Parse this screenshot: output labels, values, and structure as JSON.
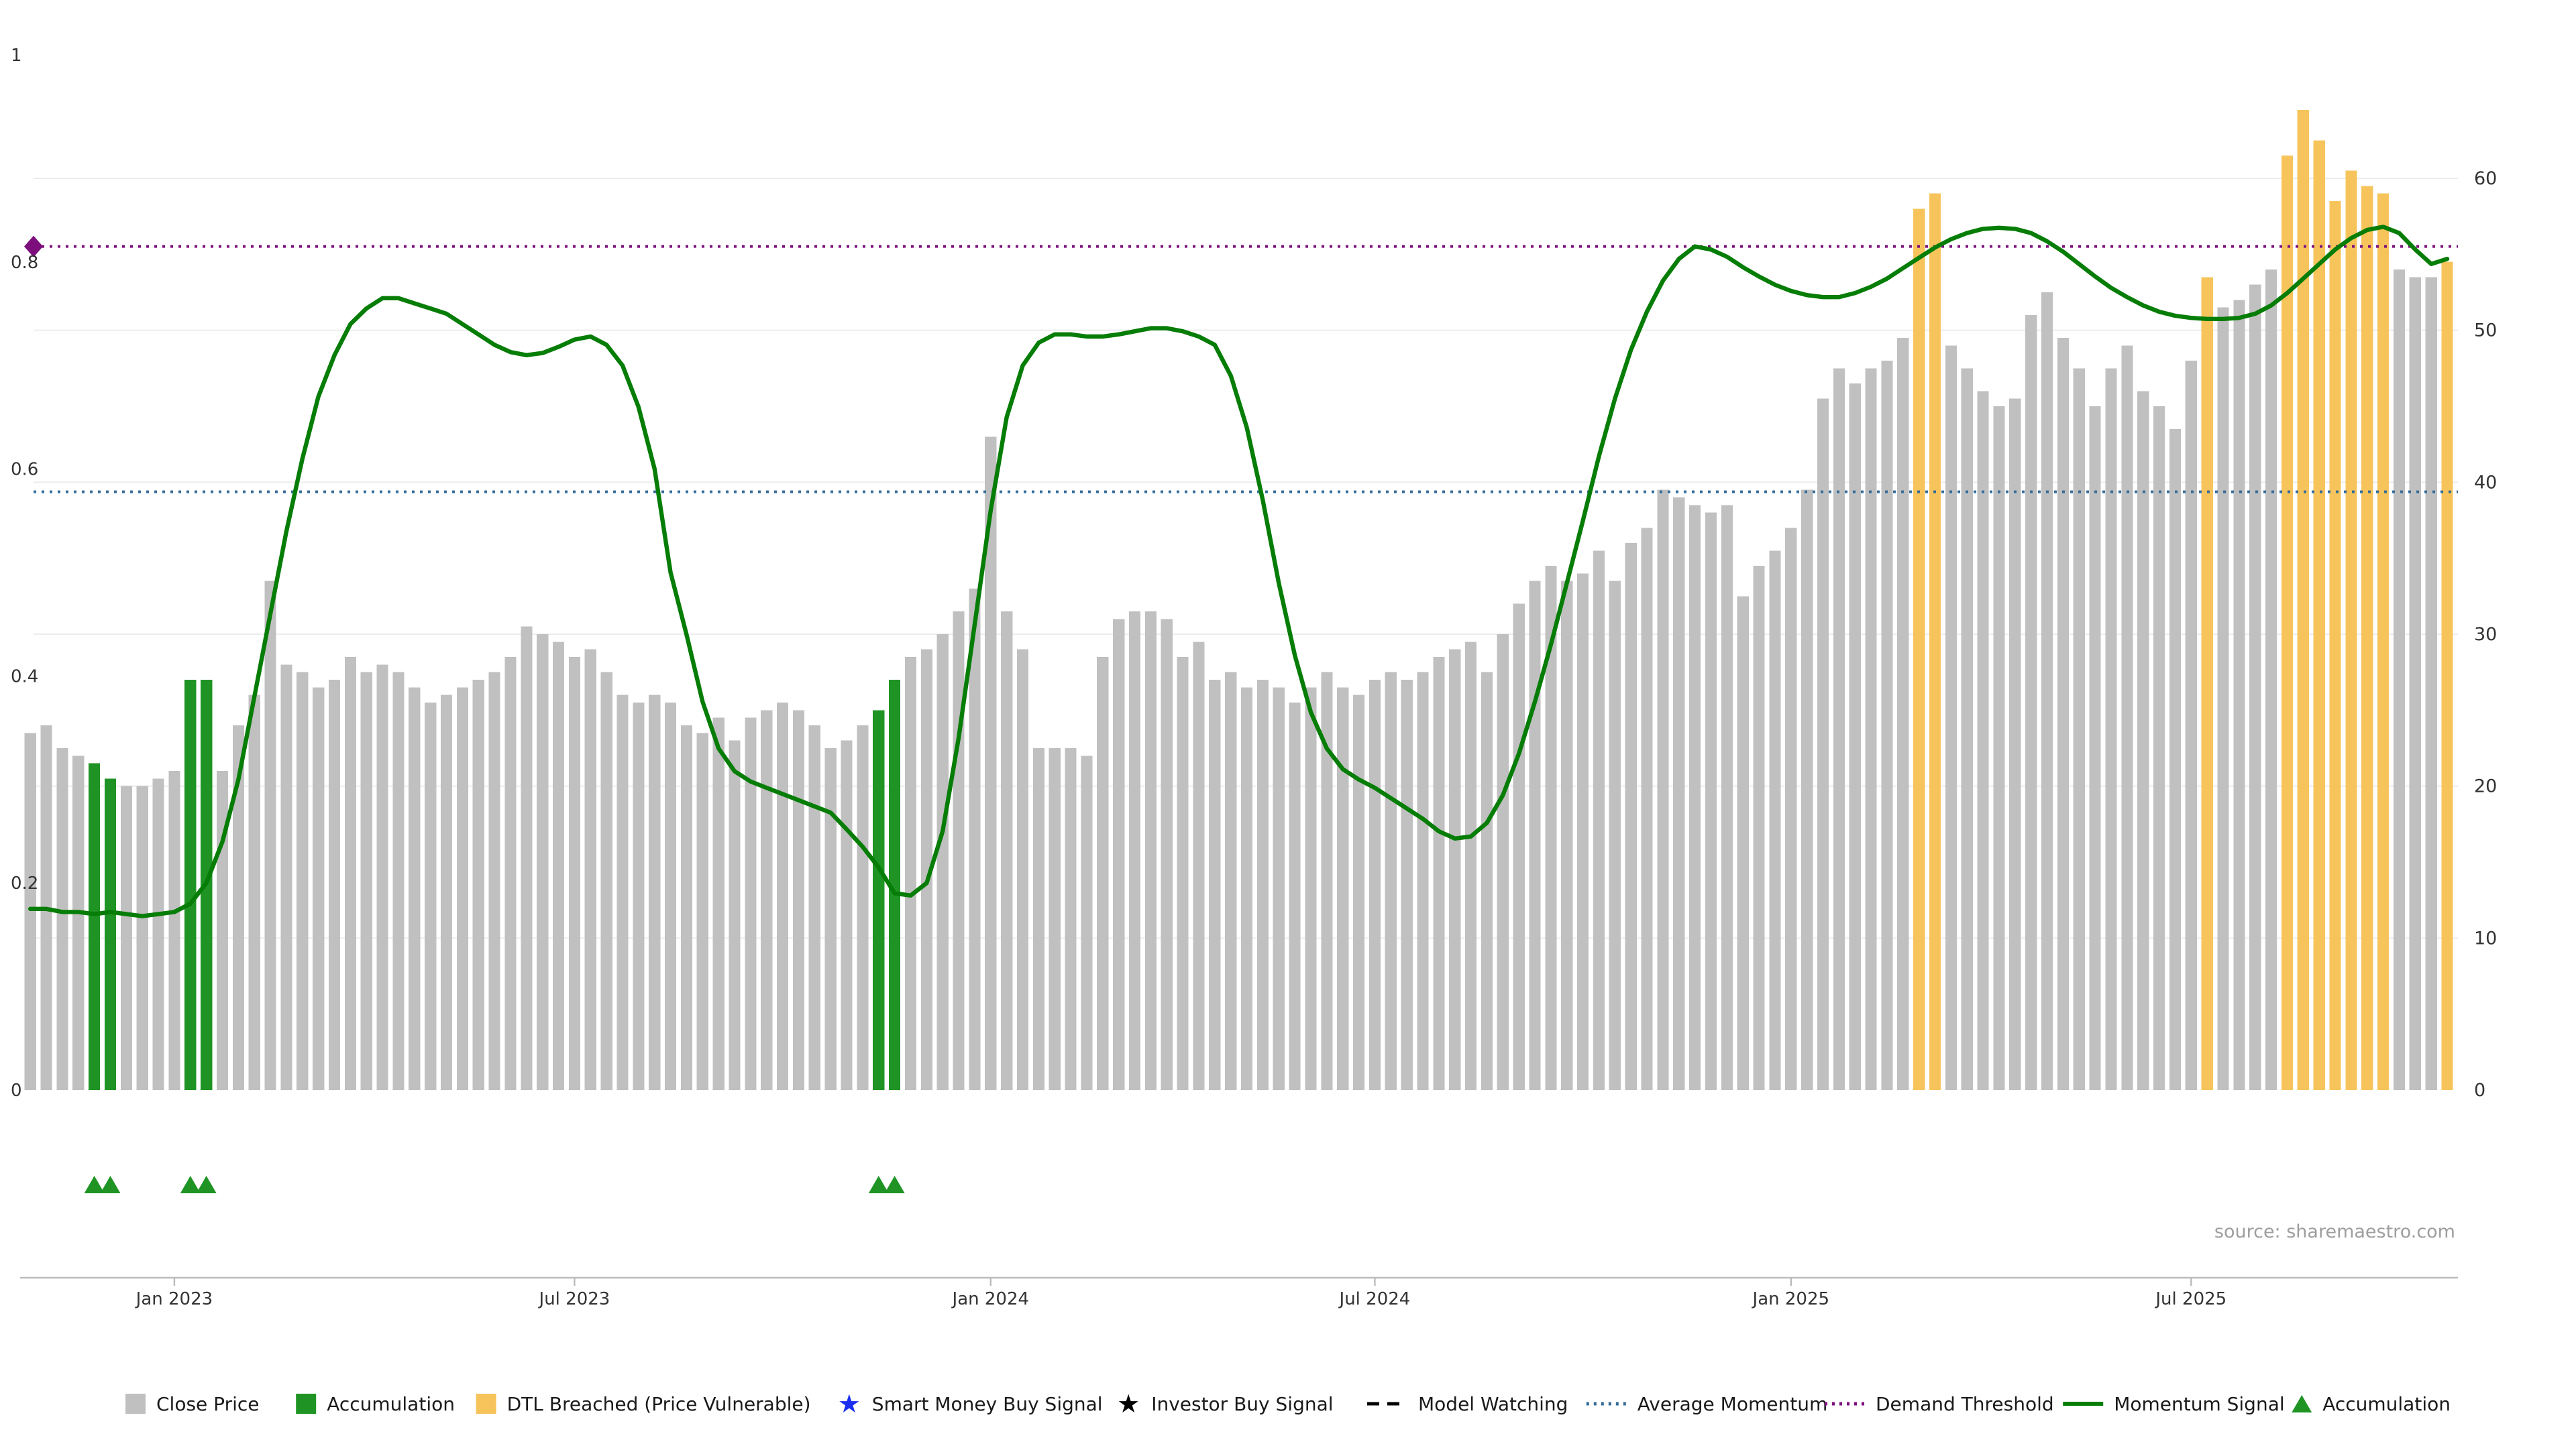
{
  "page": {
    "source_note": "source: sharemaestro.com"
  },
  "axes": {
    "left_tick_labels": [
      "0",
      "0.2",
      "0.4",
      "0.6",
      "0.8",
      "1"
    ],
    "right_tick_labels": [
      "0",
      "10",
      "20",
      "30",
      "40",
      "50",
      "60"
    ],
    "x_tick_labels": [
      "Jan 2023",
      "Jul 2023",
      "Jan 2024",
      "Jul 2024",
      "Jan 2025",
      "Jul 2025"
    ]
  },
  "colors": {
    "close_bar": "#c0c0c0",
    "accumulation_bar": "#1f9424",
    "dtl_bar": "#f7c45c",
    "momentum_line": "#067d06",
    "average_momentum": "#336b99",
    "demand_threshold": "#7d0f7d",
    "smart_money_star": "#1a2ff0",
    "investor_star": "#000000",
    "grid": "#ececec",
    "axis_text": "#333333",
    "axis_line": "#bbbbbb",
    "source_text": "#9e9e9e",
    "legend_text": "#1a1a1a"
  },
  "legend": {
    "items": [
      {
        "slug": "close-price",
        "label": "Close Price",
        "swatch": "square",
        "color": "#c0c0c0"
      },
      {
        "slug": "accumulation",
        "label": "Accumulation",
        "swatch": "square",
        "color": "#1f9424"
      },
      {
        "slug": "dtl-breached",
        "label": "DTL Breached (Price Vulnerable)",
        "swatch": "square",
        "color": "#f7c45c"
      },
      {
        "slug": "smart-money-buy-signal",
        "label": "Smart Money Buy Signal",
        "swatch": "star",
        "color": "#1a2ff0"
      },
      {
        "slug": "investor-buy-signal",
        "label": "Investor Buy Signal",
        "swatch": "star",
        "color": "#000000"
      },
      {
        "slug": "model-watching",
        "label": "Model Watching",
        "swatch": "dashed-line",
        "color": "#000000"
      },
      {
        "slug": "average-momentum",
        "label": "Average Momentum",
        "swatch": "dotted-line",
        "color": "#336b99"
      },
      {
        "slug": "demand-threshold",
        "label": "Demand Threshold",
        "swatch": "dotted-line",
        "color": "#7d0f7d"
      },
      {
        "slug": "momentum-signal",
        "label": "Momentum Signal",
        "swatch": "solid-line",
        "color": "#067d06"
      },
      {
        "slug": "accumulation-marker",
        "label": "Accumulation",
        "swatch": "triangle",
        "color": "#1f9424"
      }
    ]
  },
  "chart_data": {
    "type": "bar",
    "title": "",
    "x_unit": "week",
    "week_count": 152,
    "x_tick_labels": [
      "Jan 2023",
      "Jul 2023",
      "Jan 2024",
      "Jul 2024",
      "Jan 2025",
      "Jul 2025"
    ],
    "x_tick_weeks": [
      9,
      34,
      60,
      84,
      110,
      135
    ],
    "left_axis": {
      "series": "Momentum Signal",
      "range": [
        0,
        1
      ],
      "ticks": [
        0,
        0.2,
        0.4,
        0.6,
        0.8,
        1
      ]
    },
    "right_axis": {
      "series": "Close Price",
      "range": [
        0,
        66
      ],
      "ticks": [
        0,
        10,
        20,
        30,
        40,
        50,
        60
      ]
    },
    "close_price": {
      "name": "Close Price",
      "axis": "right",
      "values": [
        23.5,
        24,
        22.5,
        22,
        21.5,
        20.5,
        20,
        20,
        20.5,
        21,
        27,
        27,
        21,
        24,
        26,
        33.5,
        28,
        27.5,
        26.5,
        27,
        28.5,
        27.5,
        28,
        27.5,
        26.5,
        25.5,
        26,
        26.5,
        27,
        27.5,
        28.5,
        30.5,
        30,
        29.5,
        28.5,
        29,
        27.5,
        26,
        25.5,
        26,
        25.5,
        24,
        23.5,
        24.5,
        23,
        24.5,
        25,
        25.5,
        25,
        24,
        22.5,
        23,
        24,
        25,
        27,
        28.5,
        29,
        30,
        31.5,
        33,
        43,
        31.5,
        29,
        22.5,
        22.5,
        22.5,
        22,
        28.5,
        31,
        31.5,
        31.5,
        31,
        28.5,
        29.5,
        27,
        27.5,
        26.5,
        27,
        26.5,
        25.5,
        26.5,
        27.5,
        26.5,
        26,
        27,
        27.5,
        27,
        27.5,
        28.5,
        29,
        29.5,
        27.5,
        30,
        32,
        33.5,
        34.5,
        33.5,
        34,
        35.5,
        33.5,
        36,
        37,
        39.5,
        39,
        38.5,
        38,
        38.5,
        32.5,
        34.5,
        35.5,
        37,
        39.5,
        45.5,
        47.5,
        46.5,
        47.5,
        48,
        49.5,
        58,
        59,
        49,
        47.5,
        46,
        45,
        45.5,
        51,
        52.5,
        49.5,
        47.5,
        45,
        47.5,
        49,
        46,
        45,
        43.5,
        48,
        53.5,
        51.5,
        52,
        53,
        54,
        61.5,
        64.5,
        62.5,
        58.5,
        60.5,
        59.5,
        59,
        54,
        53.5,
        53.5,
        54.5
      ],
      "accumulation_weeks": [
        4,
        5,
        10,
        11,
        53,
        54
      ],
      "dtl_breached_weeks": [
        118,
        119,
        136,
        141,
        142,
        143,
        144,
        145,
        146,
        147,
        151
      ]
    },
    "momentum_signal": {
      "name": "Momentum Signal",
      "axis": "left",
      "values": [
        0.175,
        0.175,
        0.172,
        0.172,
        0.17,
        0.172,
        0.17,
        0.168,
        0.17,
        0.172,
        0.18,
        0.2,
        0.24,
        0.3,
        0.38,
        0.46,
        0.54,
        0.61,
        0.67,
        0.71,
        0.74,
        0.755,
        0.765,
        0.765,
        0.76,
        0.755,
        0.75,
        0.74,
        0.73,
        0.72,
        0.713,
        0.71,
        0.712,
        0.718,
        0.725,
        0.728,
        0.72,
        0.7,
        0.66,
        0.6,
        0.5,
        0.44,
        0.375,
        0.33,
        0.308,
        0.298,
        0.292,
        0.286,
        0.28,
        0.274,
        0.268,
        0.252,
        0.235,
        0.215,
        0.19,
        0.188,
        0.2,
        0.25,
        0.34,
        0.45,
        0.56,
        0.65,
        0.7,
        0.722,
        0.73,
        0.73,
        0.728,
        0.728,
        0.73,
        0.733,
        0.736,
        0.736,
        0.733,
        0.728,
        0.72,
        0.69,
        0.64,
        0.57,
        0.49,
        0.42,
        0.365,
        0.33,
        0.31,
        0.3,
        0.292,
        0.282,
        0.272,
        0.262,
        0.25,
        0.243,
        0.245,
        0.258,
        0.285,
        0.325,
        0.375,
        0.43,
        0.49,
        0.55,
        0.612,
        0.668,
        0.715,
        0.752,
        0.782,
        0.803,
        0.815,
        0.812,
        0.805,
        0.795,
        0.786,
        0.778,
        0.772,
        0.768,
        0.766,
        0.766,
        0.77,
        0.776,
        0.784,
        0.794,
        0.804,
        0.814,
        0.822,
        0.828,
        0.832,
        0.833,
        0.832,
        0.828,
        0.82,
        0.81,
        0.798,
        0.786,
        0.775,
        0.766,
        0.758,
        0.752,
        0.748,
        0.746,
        0.745,
        0.745,
        0.746,
        0.75,
        0.758,
        0.77,
        0.784,
        0.798,
        0.812,
        0.823,
        0.831,
        0.834,
        0.828,
        0.812,
        0.798,
        0.803
      ]
    },
    "reference_lines": [
      {
        "name": "Demand Threshold",
        "axis": "left",
        "value": 0.815,
        "style": "dotted",
        "color": "#7d0f7d",
        "marker": "diamond-left"
      },
      {
        "name": "Average Momentum",
        "axis": "left",
        "value": 0.578,
        "style": "dotted",
        "color": "#336b99"
      }
    ],
    "accumulation_markers": {
      "shape": "triangle-up",
      "color": "#1f9424",
      "weeks": [
        4,
        5,
        10,
        11,
        53,
        54
      ]
    }
  }
}
